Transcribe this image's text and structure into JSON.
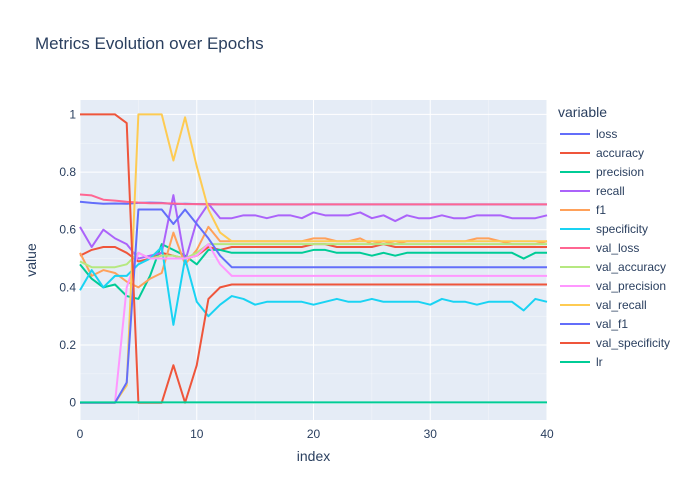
{
  "chart_data": {
    "type": "line",
    "title": "Metrics Evolution over Epochs",
    "xlabel": "index",
    "ylabel": "value",
    "xlim": [
      0,
      40
    ],
    "ylim": [
      -0.06,
      1.05
    ],
    "xticks": [
      0,
      10,
      20,
      30,
      40
    ],
    "yticks": [
      0,
      0.2,
      0.4,
      0.6,
      0.8,
      1
    ],
    "legend_title": "variable",
    "grid": true,
    "legend_position": "right",
    "x": [
      0,
      1,
      2,
      3,
      4,
      5,
      6,
      7,
      8,
      9,
      10,
      11,
      12,
      13,
      14,
      15,
      16,
      17,
      18,
      19,
      20,
      21,
      22,
      23,
      24,
      25,
      26,
      27,
      28,
      29,
      30,
      31,
      32,
      33,
      34,
      35,
      36,
      37,
      38,
      39,
      40
    ],
    "series": [
      {
        "name": "loss",
        "color": "#636efa",
        "values": [
          0.697,
          0.693,
          0.69,
          0.691,
          0.69,
          0.693,
          0.694,
          0.693,
          0.689,
          0.69,
          0.689,
          0.689,
          0.688,
          0.688,
          0.688,
          0.688,
          0.688,
          0.688,
          0.688,
          0.688,
          0.688,
          0.688,
          0.688,
          0.688,
          0.688,
          0.688,
          0.688,
          0.688,
          0.688,
          0.688,
          0.688,
          0.688,
          0.688,
          0.688,
          0.688,
          0.688,
          0.688,
          0.688,
          0.688,
          0.688,
          0.688
        ]
      },
      {
        "name": "accuracy",
        "color": "#EF553B",
        "values": [
          0.51,
          0.53,
          0.54,
          0.54,
          0.52,
          0.49,
          0.5,
          0.52,
          0.51,
          0.5,
          0.51,
          0.54,
          0.53,
          0.54,
          0.54,
          0.54,
          0.54,
          0.54,
          0.54,
          0.54,
          0.55,
          0.55,
          0.54,
          0.54,
          0.54,
          0.54,
          0.55,
          0.54,
          0.54,
          0.54,
          0.54,
          0.54,
          0.54,
          0.54,
          0.54,
          0.54,
          0.54,
          0.54,
          0.54,
          0.54,
          0.54
        ]
      },
      {
        "name": "precision",
        "color": "#00cc96",
        "values": [
          0.48,
          0.43,
          0.4,
          0.41,
          0.37,
          0.36,
          0.44,
          0.55,
          0.53,
          0.51,
          0.48,
          0.53,
          0.53,
          0.52,
          0.52,
          0.52,
          0.52,
          0.52,
          0.52,
          0.52,
          0.53,
          0.53,
          0.52,
          0.52,
          0.52,
          0.51,
          0.52,
          0.51,
          0.52,
          0.52,
          0.52,
          0.52,
          0.52,
          0.52,
          0.52,
          0.52,
          0.52,
          0.52,
          0.5,
          0.52,
          0.52
        ]
      },
      {
        "name": "recall",
        "color": "#ab63fa",
        "values": [
          0.61,
          0.54,
          0.6,
          0.57,
          0.55,
          0.5,
          0.51,
          0.52,
          0.72,
          0.49,
          0.63,
          0.69,
          0.64,
          0.64,
          0.65,
          0.65,
          0.64,
          0.65,
          0.65,
          0.64,
          0.66,
          0.65,
          0.65,
          0.65,
          0.66,
          0.64,
          0.65,
          0.63,
          0.65,
          0.64,
          0.64,
          0.65,
          0.64,
          0.64,
          0.65,
          0.65,
          0.65,
          0.64,
          0.64,
          0.64,
          0.65
        ]
      },
      {
        "name": "f1",
        "color": "#FFA15A",
        "values": [
          0.52,
          0.44,
          0.46,
          0.45,
          0.42,
          0.4,
          0.43,
          0.45,
          0.59,
          0.48,
          0.53,
          0.61,
          0.56,
          0.56,
          0.56,
          0.56,
          0.56,
          0.56,
          0.56,
          0.56,
          0.57,
          0.57,
          0.56,
          0.56,
          0.57,
          0.55,
          0.56,
          0.55,
          0.56,
          0.56,
          0.56,
          0.56,
          0.56,
          0.56,
          0.57,
          0.57,
          0.56,
          0.55,
          0.55,
          0.55,
          0.56
        ]
      },
      {
        "name": "specificity",
        "color": "#19d3f3",
        "values": [
          0.39,
          0.46,
          0.4,
          0.44,
          0.44,
          0.48,
          0.5,
          0.54,
          0.27,
          0.5,
          0.35,
          0.3,
          0.34,
          0.37,
          0.36,
          0.34,
          0.35,
          0.35,
          0.35,
          0.35,
          0.34,
          0.35,
          0.36,
          0.35,
          0.35,
          0.36,
          0.35,
          0.35,
          0.35,
          0.35,
          0.34,
          0.36,
          0.35,
          0.35,
          0.34,
          0.35,
          0.35,
          0.35,
          0.32,
          0.36,
          0.35
        ]
      },
      {
        "name": "val_loss",
        "color": "#FF6692",
        "values": [
          0.722,
          0.719,
          0.704,
          0.701,
          0.697,
          0.694,
          0.692,
          0.692,
          0.691,
          0.689,
          0.689,
          0.688,
          0.688,
          0.688,
          0.688,
          0.688,
          0.688,
          0.688,
          0.688,
          0.688,
          0.688,
          0.688,
          0.688,
          0.688,
          0.688,
          0.688,
          0.688,
          0.688,
          0.688,
          0.688,
          0.688,
          0.688,
          0.688,
          0.688,
          0.688,
          0.688,
          0.688,
          0.688,
          0.688,
          0.688,
          0.688
        ]
      },
      {
        "name": "val_accuracy",
        "color": "#B6E880",
        "values": [
          0.49,
          0.47,
          0.47,
          0.47,
          0.48,
          0.52,
          0.5,
          0.51,
          0.51,
          0.5,
          0.52,
          0.55,
          0.55,
          0.55,
          0.55,
          0.55,
          0.55,
          0.55,
          0.55,
          0.55,
          0.55,
          0.55,
          0.55,
          0.55,
          0.55,
          0.55,
          0.55,
          0.55,
          0.55,
          0.55,
          0.55,
          0.55,
          0.55,
          0.55,
          0.55,
          0.55,
          0.55,
          0.55,
          0.55,
          0.55,
          0.55
        ]
      },
      {
        "name": "val_precision",
        "color": "#FF97FF",
        "values": [
          0,
          0,
          0,
          0,
          0.4,
          0.52,
          0.5,
          0.5,
          0.5,
          0.5,
          0.51,
          0.55,
          0.48,
          0.44,
          0.44,
          0.44,
          0.44,
          0.44,
          0.44,
          0.44,
          0.44,
          0.44,
          0.44,
          0.44,
          0.44,
          0.44,
          0.44,
          0.44,
          0.44,
          0.44,
          0.44,
          0.44,
          0.44,
          0.44,
          0.44,
          0.44,
          0.44,
          0.44,
          0.44,
          0.44,
          0.44
        ]
      },
      {
        "name": "val_recall",
        "color": "#FECB52",
        "values": [
          0,
          0,
          0,
          0,
          0.06,
          1.0,
          1.0,
          1.0,
          0.84,
          0.99,
          0.82,
          0.67,
          0.59,
          0.56,
          0.56,
          0.56,
          0.56,
          0.56,
          0.56,
          0.56,
          0.56,
          0.56,
          0.56,
          0.56,
          0.56,
          0.56,
          0.56,
          0.56,
          0.56,
          0.56,
          0.56,
          0.56,
          0.56,
          0.56,
          0.56,
          0.56,
          0.56,
          0.56,
          0.56,
          0.56,
          0.56
        ]
      },
      {
        "name": "val_f1",
        "color": "#636efa",
        "values": [
          0,
          0,
          0,
          0,
          0.07,
          0.67,
          0.67,
          0.67,
          0.62,
          0.67,
          0.62,
          0.57,
          0.51,
          0.47,
          0.47,
          0.47,
          0.47,
          0.47,
          0.47,
          0.47,
          0.47,
          0.47,
          0.47,
          0.47,
          0.47,
          0.47,
          0.47,
          0.47,
          0.47,
          0.47,
          0.47,
          0.47,
          0.47,
          0.47,
          0.47,
          0.47,
          0.47,
          0.47,
          0.47,
          0.47,
          0.47
        ]
      },
      {
        "name": "val_specificity",
        "color": "#EF553B",
        "values": [
          1,
          1,
          1,
          1,
          0.97,
          0,
          0,
          0,
          0.13,
          0,
          0.13,
          0.36,
          0.4,
          0.41,
          0.41,
          0.41,
          0.41,
          0.41,
          0.41,
          0.41,
          0.41,
          0.41,
          0.41,
          0.41,
          0.41,
          0.41,
          0.41,
          0.41,
          0.41,
          0.41,
          0.41,
          0.41,
          0.41,
          0.41,
          0.41,
          0.41,
          0.41,
          0.41,
          0.41,
          0.41,
          0.41
        ]
      },
      {
        "name": "lr",
        "color": "#00cc96",
        "values": [
          0.001,
          0.001,
          0.001,
          0.001,
          0.001,
          0.001,
          0.001,
          0.001,
          0.001,
          0.001,
          0.001,
          0.001,
          0.001,
          0.001,
          0.001,
          0.001,
          0.001,
          0.001,
          0.001,
          0.001,
          0.001,
          0.001,
          0.001,
          0.001,
          0.001,
          0.001,
          0.001,
          0.001,
          0.001,
          0.001,
          0.001,
          0.001,
          0.001,
          0.001,
          0.001,
          0.001,
          0.001,
          0.001,
          0.001,
          0.001,
          0.001
        ]
      }
    ]
  }
}
